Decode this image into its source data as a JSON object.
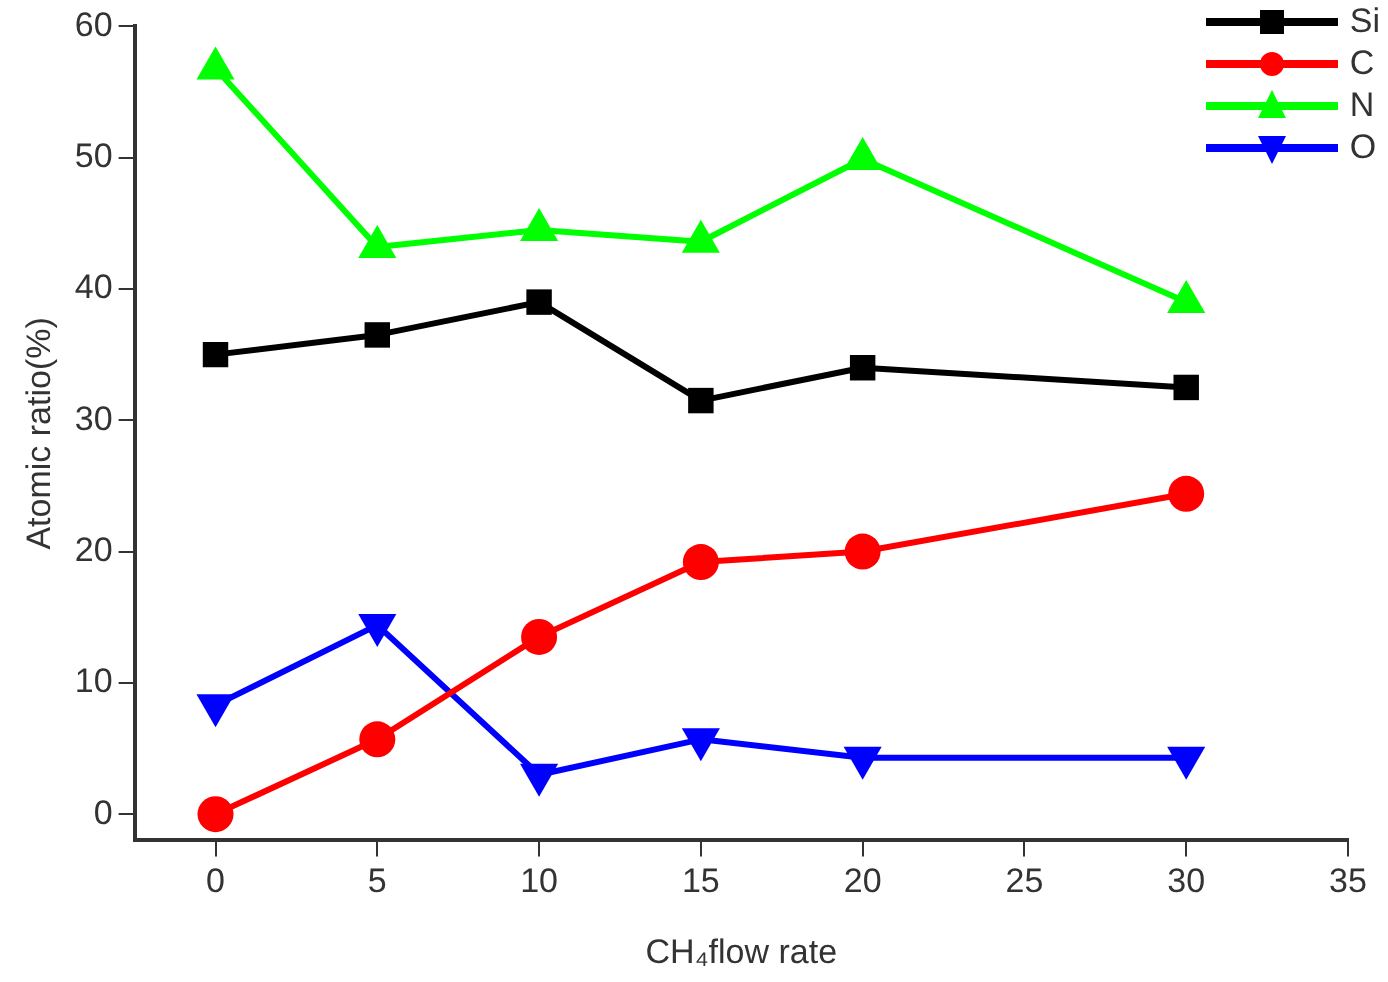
{
  "chart_data": {
    "type": "line",
    "xlabel": "CH₄flow rate",
    "ylabel": "Atomic ratio(%)",
    "x": [
      0,
      5,
      10,
      15,
      20,
      30
    ],
    "xlim": [
      -2.5,
      35
    ],
    "xticks": [
      0,
      5,
      10,
      15,
      20,
      25,
      30,
      35
    ],
    "ylim": [
      -2,
      60
    ],
    "yticks": [
      0,
      10,
      20,
      30,
      40,
      50,
      60
    ],
    "grid": false,
    "legend": "top right",
    "line_style": "solid",
    "series": [
      {
        "name": "Si",
        "color": "#000000",
        "marker": "square",
        "values": [
          35,
          36.5,
          39,
          31.5,
          34,
          32.5
        ]
      },
      {
        "name": "C",
        "color": "#ff0000",
        "marker": "circle",
        "values": [
          0,
          5.7,
          13.5,
          19.2,
          20,
          24.4
        ]
      },
      {
        "name": "N",
        "color": "#00ff00",
        "marker": "triangle",
        "values": [
          56.8,
          43.2,
          44.5,
          43.6,
          49.9,
          39
        ]
      },
      {
        "name": "O",
        "color": "#0000ff",
        "marker": "triangle-down",
        "values": [
          8.3,
          14.4,
          3,
          5.7,
          4.3,
          4.3
        ]
      }
    ]
  }
}
